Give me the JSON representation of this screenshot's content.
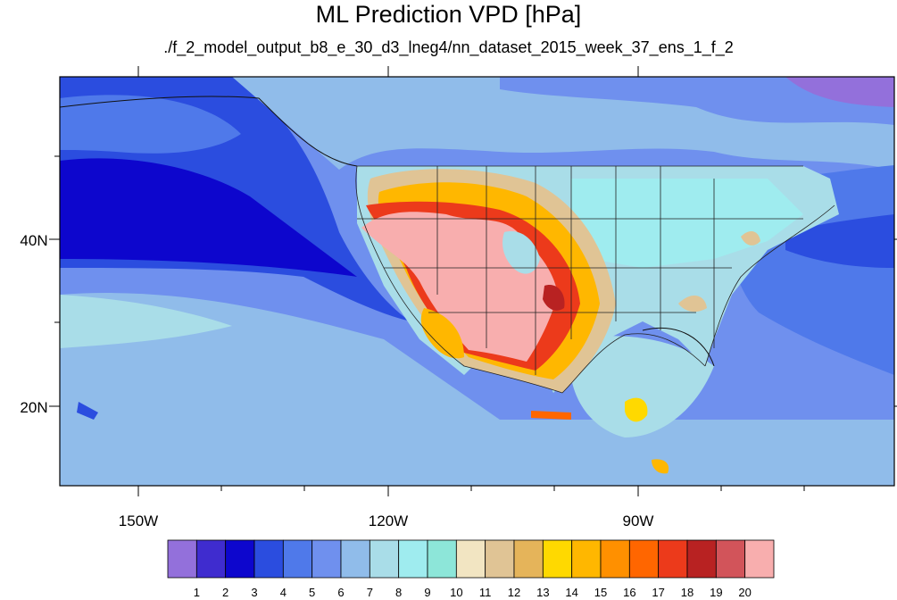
{
  "title": "ML Prediction VPD [hPa]",
  "subtitle": "./f_2_model_output_b8_e_30_d3_lneg4/nn_dataset_2015_week_37_ens_1_f_2",
  "map": {
    "projection": "cylindrical-equidistant",
    "lon_range": [
      -160,
      -62
    ],
    "lat_range": [
      10,
      59
    ],
    "lat_labels": [
      "40N",
      "20N"
    ],
    "lon_labels": [
      "150W",
      "120W",
      "90W"
    ],
    "ocean_base_color": "#6e8fe6",
    "land_hot_color": "#f8aeae"
  },
  "colorbar": {
    "labels": [
      "1",
      "2",
      "3",
      "4",
      "5",
      "6",
      "7",
      "8",
      "9",
      "10",
      "11",
      "12",
      "13",
      "14",
      "15",
      "16",
      "17",
      "18",
      "19",
      "20"
    ],
    "colors": [
      "#9370db",
      "#3f2ccf",
      "#0d06cd",
      "#2b4ddf",
      "#4f79ea",
      "#6f90ee",
      "#90bcea",
      "#a9dde8",
      "#9fecef",
      "#8de6d9",
      "#f2e5c2",
      "#e0c495",
      "#e5b45a",
      "#ffd900",
      "#ffb700",
      "#ff9000",
      "#ff6600",
      "#ec3a1b",
      "#b82222",
      "#d2545a",
      "#f8aeae"
    ]
  }
}
